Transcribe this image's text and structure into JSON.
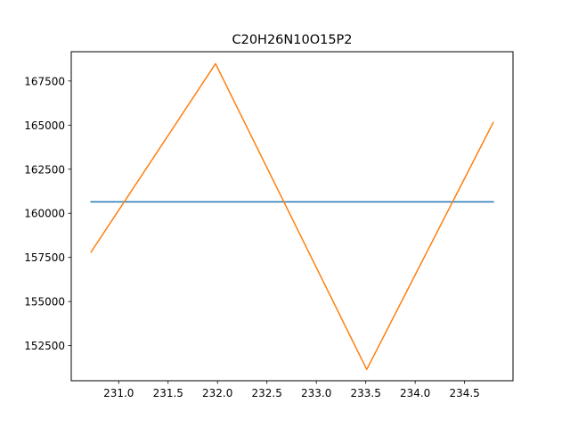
{
  "chart_data": {
    "type": "line",
    "title": "C20H26N10O15P2",
    "xlabel": "",
    "ylabel": "",
    "xlim": [
      230.52,
      234.99
    ],
    "ylim": [
      150510,
      169160
    ],
    "grid": false,
    "xticks": [
      231.0,
      231.5,
      232.0,
      232.5,
      233.0,
      233.5,
      234.0,
      234.5
    ],
    "xtick_labels": [
      "231.0",
      "231.5",
      "232.0",
      "232.5",
      "233.0",
      "233.5",
      "234.0",
      "234.5"
    ],
    "yticks": [
      152500,
      155000,
      157500,
      160000,
      162500,
      165000,
      167500
    ],
    "ytick_labels": [
      "152500",
      "155000",
      "157500",
      "160000",
      "162500",
      "165000",
      "167500"
    ],
    "series": [
      {
        "color": "#1f77b4",
        "x": [
          230.72,
          234.79
        ],
        "y": [
          160650,
          160650
        ]
      },
      {
        "color": "#ff7f0e",
        "x": [
          230.72,
          231.98,
          233.51,
          234.79
        ],
        "y": [
          157800,
          168480,
          151150,
          165150
        ]
      }
    ]
  }
}
